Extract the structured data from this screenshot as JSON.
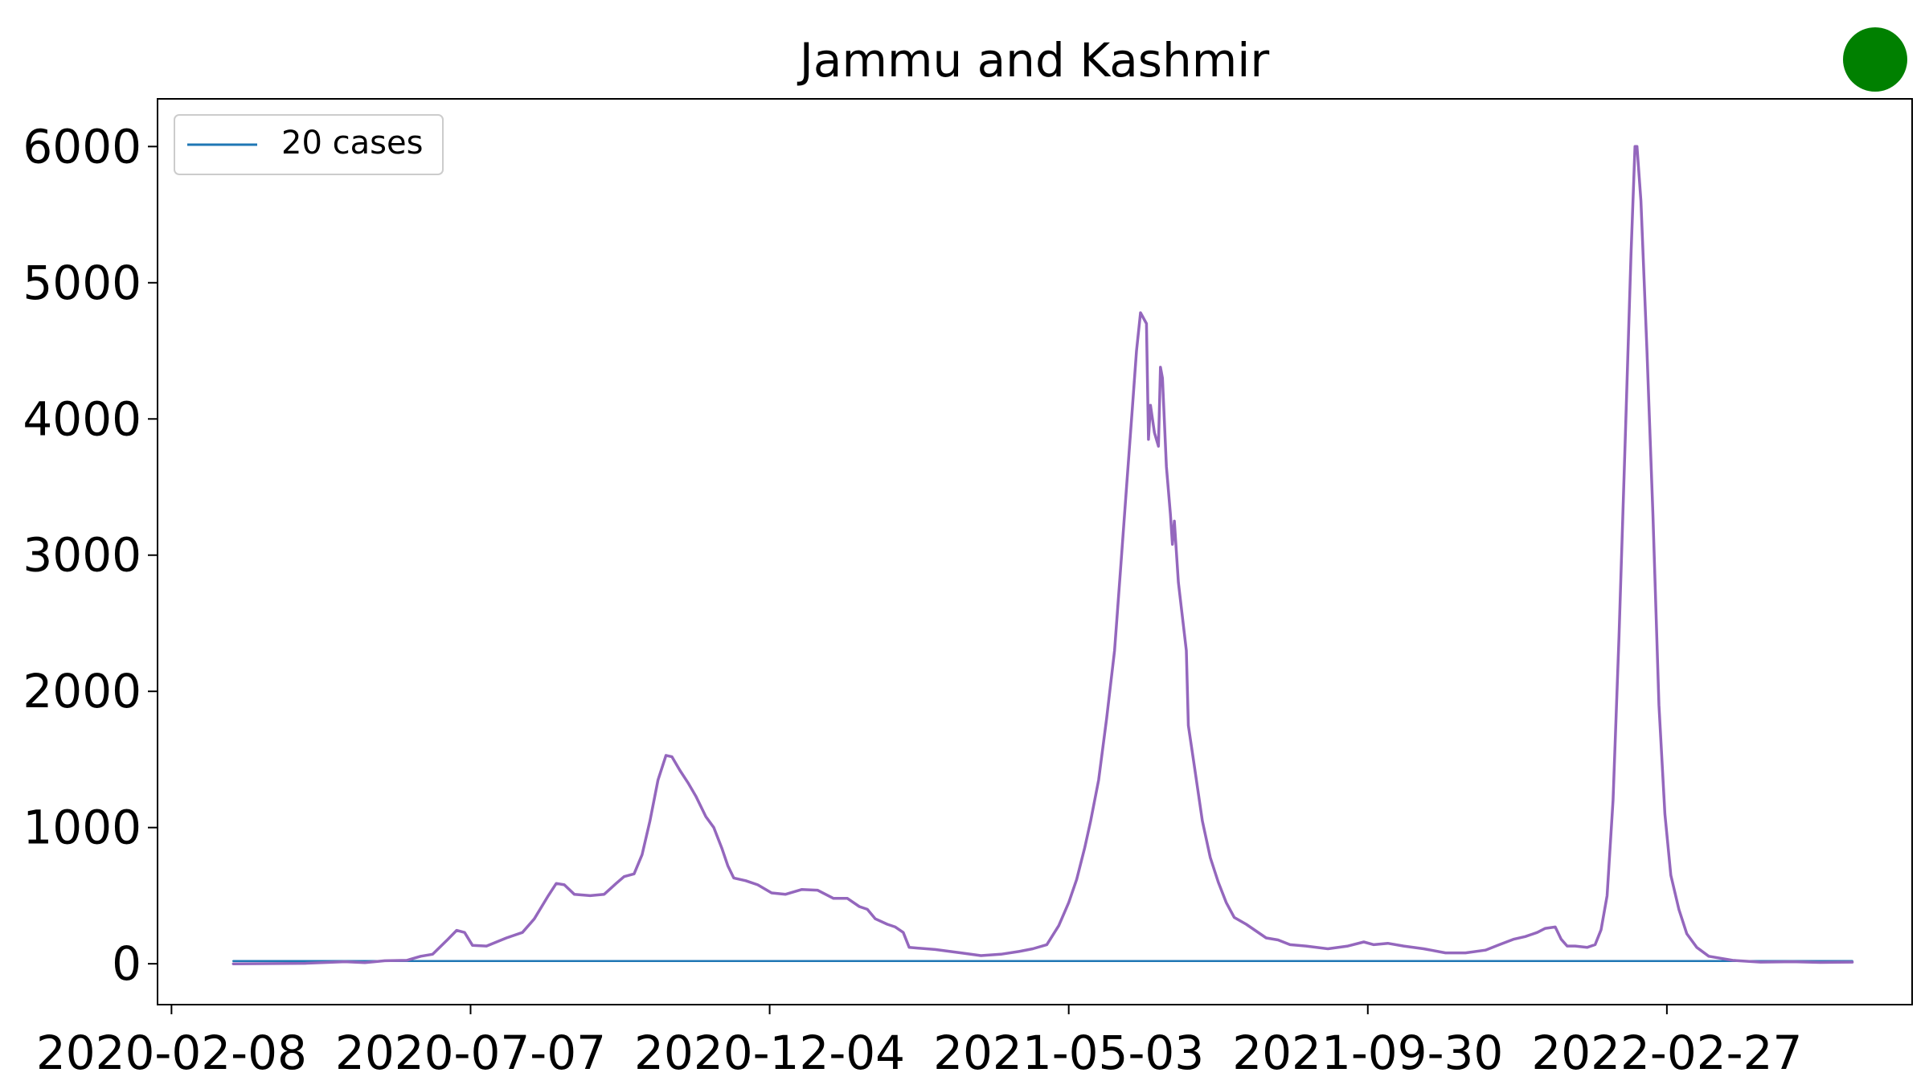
{
  "chart_data": {
    "type": "line",
    "title": "Jammu and Kashmir",
    "xlabel": "",
    "ylabel": "",
    "x_ticks": [
      "2020-02-08",
      "2020-07-07",
      "2020-12-04",
      "2021-05-03",
      "2021-09-30",
      "2022-02-27"
    ],
    "y_ticks": [
      "0",
      "1000",
      "2000",
      "3000",
      "4000",
      "5000",
      "6000"
    ],
    "ylim": [
      -300,
      6350
    ],
    "xlim": [
      "2020-02-01",
      "2022-06-30"
    ],
    "grid": false,
    "legend": {
      "placement": "top-left",
      "entries": [
        "20 cases"
      ]
    },
    "series": [
      {
        "name": "20 cases",
        "color": "#1f77b4",
        "points": [
          [
            "2020-03-10",
            20
          ],
          [
            "2022-05-31",
            20
          ]
        ]
      },
      {
        "name": "",
        "color": "#9467bd",
        "points": [
          [
            "2020-03-10",
            0
          ],
          [
            "2020-04-15",
            3
          ],
          [
            "2020-05-05",
            15
          ],
          [
            "2020-05-15",
            8
          ],
          [
            "2020-05-25",
            22
          ],
          [
            "2020-06-05",
            25
          ],
          [
            "2020-06-12",
            55
          ],
          [
            "2020-06-18",
            70
          ],
          [
            "2020-06-25",
            170
          ],
          [
            "2020-06-30",
            245
          ],
          [
            "2020-07-04",
            230
          ],
          [
            "2020-07-08",
            135
          ],
          [
            "2020-07-15",
            130
          ],
          [
            "2020-07-25",
            190
          ],
          [
            "2020-08-02",
            230
          ],
          [
            "2020-08-08",
            330
          ],
          [
            "2020-08-15",
            500
          ],
          [
            "2020-08-19",
            590
          ],
          [
            "2020-08-23",
            580
          ],
          [
            "2020-08-28",
            510
          ],
          [
            "2020-09-05",
            500
          ],
          [
            "2020-09-12",
            510
          ],
          [
            "2020-09-18",
            590
          ],
          [
            "2020-09-22",
            640
          ],
          [
            "2020-09-27",
            660
          ],
          [
            "2020-10-01",
            800
          ],
          [
            "2020-10-05",
            1050
          ],
          [
            "2020-10-09",
            1350
          ],
          [
            "2020-10-13",
            1530
          ],
          [
            "2020-10-16",
            1520
          ],
          [
            "2020-10-20",
            1420
          ],
          [
            "2020-10-24",
            1330
          ],
          [
            "2020-10-28",
            1230
          ],
          [
            "2020-11-02",
            1080
          ],
          [
            "2020-11-06",
            1000
          ],
          [
            "2020-11-10",
            850
          ],
          [
            "2020-11-13",
            720
          ],
          [
            "2020-11-16",
            630
          ],
          [
            "2020-11-22",
            610
          ],
          [
            "2020-11-28",
            580
          ],
          [
            "2020-12-05",
            520
          ],
          [
            "2020-12-12",
            510
          ],
          [
            "2020-12-20",
            545
          ],
          [
            "2020-12-28",
            540
          ],
          [
            "2021-01-05",
            480
          ],
          [
            "2021-01-12",
            480
          ],
          [
            "2021-01-18",
            420
          ],
          [
            "2021-01-22",
            400
          ],
          [
            "2021-01-26",
            330
          ],
          [
            "2021-02-01",
            290
          ],
          [
            "2021-02-05",
            270
          ],
          [
            "2021-02-09",
            230
          ],
          [
            "2021-02-12",
            120
          ],
          [
            "2021-02-25",
            105
          ],
          [
            "2021-03-10",
            80
          ],
          [
            "2021-03-20",
            60
          ],
          [
            "2021-03-30",
            70
          ],
          [
            "2021-04-08",
            90
          ],
          [
            "2021-04-15",
            110
          ],
          [
            "2021-04-22",
            140
          ],
          [
            "2021-04-28",
            280
          ],
          [
            "2021-05-03",
            450
          ],
          [
            "2021-05-07",
            620
          ],
          [
            "2021-05-11",
            850
          ],
          [
            "2021-05-14",
            1050
          ],
          [
            "2021-05-18",
            1350
          ],
          [
            "2021-05-22",
            1800
          ],
          [
            "2021-05-26",
            2300
          ],
          [
            "2021-05-29",
            2900
          ],
          [
            "2021-06-01",
            3500
          ],
          [
            "2021-06-04",
            4100
          ],
          [
            "2021-06-06",
            4500
          ],
          [
            "2021-06-08",
            4780
          ],
          [
            "2021-06-11",
            4700
          ],
          [
            "2021-06-12",
            3850
          ],
          [
            "2021-06-13",
            4100
          ],
          [
            "2021-06-15",
            3900
          ],
          [
            "2021-06-17",
            3800
          ],
          [
            "2021-06-18",
            4380
          ],
          [
            "2021-06-19",
            4300
          ],
          [
            "2021-06-21",
            3650
          ],
          [
            "2021-06-23",
            3300
          ],
          [
            "2021-06-24",
            3080
          ],
          [
            "2021-06-25",
            3250
          ],
          [
            "2021-06-27",
            2800
          ],
          [
            "2021-07-01",
            2300
          ],
          [
            "2021-07-02",
            1750
          ],
          [
            "2021-07-05",
            1450
          ],
          [
            "2021-07-09",
            1050
          ],
          [
            "2021-07-13",
            780
          ],
          [
            "2021-07-17",
            600
          ],
          [
            "2021-07-21",
            450
          ],
          [
            "2021-07-25",
            340
          ],
          [
            "2021-07-31",
            290
          ],
          [
            "2021-08-05",
            240
          ],
          [
            "2021-08-10",
            190
          ],
          [
            "2021-08-16",
            175
          ],
          [
            "2021-08-22",
            140
          ],
          [
            "2021-08-30",
            130
          ],
          [
            "2021-09-10",
            110
          ],
          [
            "2021-09-20",
            130
          ],
          [
            "2021-09-28",
            160
          ],
          [
            "2021-10-03",
            140
          ],
          [
            "2021-10-10",
            150
          ],
          [
            "2021-10-18",
            130
          ],
          [
            "2021-10-28",
            110
          ],
          [
            "2021-11-08",
            80
          ],
          [
            "2021-11-18",
            80
          ],
          [
            "2021-11-28",
            100
          ],
          [
            "2021-12-05",
            140
          ],
          [
            "2021-12-12",
            180
          ],
          [
            "2021-12-18",
            200
          ],
          [
            "2021-12-24",
            230
          ],
          [
            "2021-12-28",
            260
          ],
          [
            "2022-01-02",
            270
          ],
          [
            "2022-01-05",
            180
          ],
          [
            "2022-01-08",
            130
          ],
          [
            "2022-01-12",
            130
          ],
          [
            "2022-01-18",
            120
          ],
          [
            "2022-01-22",
            140
          ],
          [
            "2022-01-25",
            250
          ],
          [
            "2022-01-28",
            500
          ],
          [
            "2022-01-31",
            1200
          ],
          [
            "2022-02-03",
            2400
          ],
          [
            "2022-02-06",
            3800
          ],
          [
            "2022-02-09",
            5200
          ],
          [
            "2022-02-11",
            6000
          ],
          [
            "2022-02-12",
            6000
          ],
          [
            "2022-02-14",
            5600
          ],
          [
            "2022-02-17",
            4500
          ],
          [
            "2022-02-20",
            3300
          ],
          [
            "2022-02-23",
            1900
          ],
          [
            "2022-02-26",
            1100
          ],
          [
            "2022-03-01",
            650
          ],
          [
            "2022-03-05",
            400
          ],
          [
            "2022-03-09",
            220
          ],
          [
            "2022-03-14",
            120
          ],
          [
            "2022-03-20",
            55
          ],
          [
            "2022-04-01",
            25
          ],
          [
            "2022-04-15",
            12
          ],
          [
            "2022-05-01",
            15
          ],
          [
            "2022-05-15",
            10
          ],
          [
            "2022-05-31",
            12
          ]
        ]
      }
    ]
  },
  "indicator": {
    "color": "#008000"
  }
}
